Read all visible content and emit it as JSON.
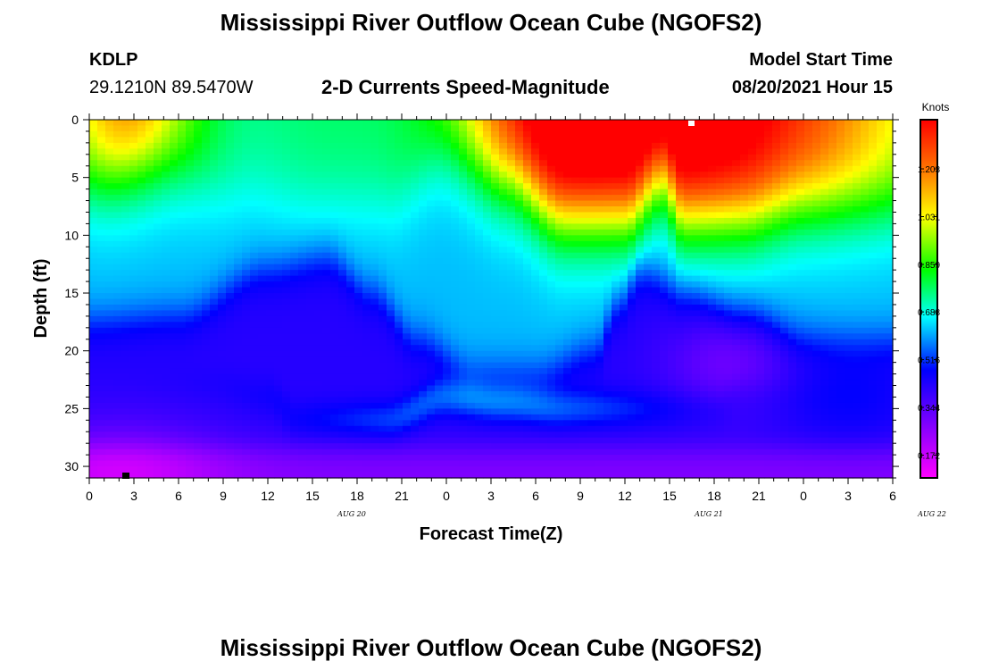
{
  "page": {
    "title": "Mississippi River Outflow Ocean Cube (NGOFS2)",
    "footer_title": "Mississippi River Outflow Ocean Cube (NGOFS2)",
    "station_id": "KDLP",
    "station_coords": "29.1210N  89.5470W",
    "chart_heading": "2-D Currents Speed-Magnitude",
    "model_start_label": "Model Start Time",
    "model_start_value": "08/20/2021 Hour 15"
  },
  "chart_data": {
    "type": "heatmap",
    "title": "2-D Currents Speed-Magnitude",
    "xlabel": "Forecast Time(Z)",
    "ylabel": "Depth (ft)",
    "x_tick_labels": [
      "0",
      "3",
      "6",
      "9",
      "12",
      "15",
      "18",
      "21",
      "0",
      "3",
      "6",
      "9",
      "12",
      "15",
      "18",
      "21",
      "0",
      "3",
      "6"
    ],
    "x_date_labels": [
      {
        "label": "AUG  20",
        "at_tick": 6
      },
      {
        "label": "AUG  21",
        "at_tick": 14
      },
      {
        "label": "AUG  22",
        "at_tick": 19
      }
    ],
    "y_ticks": [
      0,
      5,
      10,
      15,
      20,
      25,
      30
    ],
    "ylim": [
      0,
      31
    ],
    "xlim_hours": [
      0,
      54
    ],
    "colorbar": {
      "unit": "Knots",
      "labels": [
        "1.203",
        "1.031",
        "0.859",
        "0.688",
        "0.516",
        "0.344",
        "0.172"
      ],
      "range": [
        0.09,
        1.38
      ]
    },
    "colors": {
      "magenta": "#ff00ff",
      "purple": "#9900ff",
      "blue": "#0000ff",
      "cyan": "#00ffff",
      "green": "#00ff00",
      "yellow": "#ffff00",
      "orange": "#ff7700",
      "red": "#ff0000"
    }
  }
}
